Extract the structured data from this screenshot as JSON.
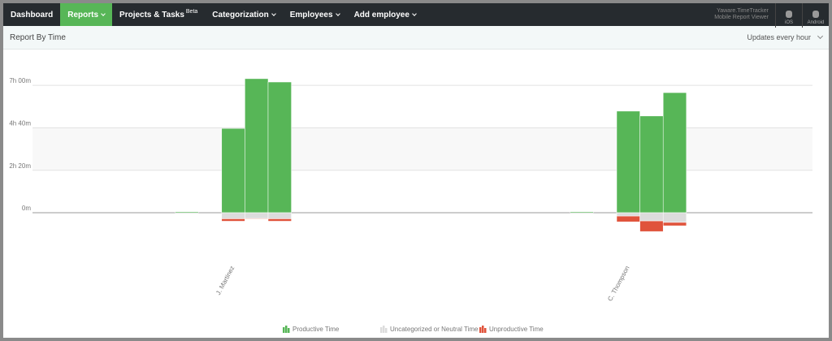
{
  "nav": {
    "items": [
      {
        "label": "Dashboard"
      },
      {
        "label": "Reports",
        "active": true
      },
      {
        "label": "Projects & Tasks",
        "badge": "Beta"
      },
      {
        "label": "Categorization"
      },
      {
        "label": "Employees"
      },
      {
        "label": "Add employee"
      }
    ],
    "promo": {
      "title": "Yaware.TimeTracker",
      "subtitle": "Mobile Report Viewer",
      "apps": [
        "iOS",
        "Android"
      ]
    }
  },
  "panel": {
    "title": "Report By Time",
    "refresh": "Updates every hour"
  },
  "chart_data": {
    "type": "bar",
    "stacked": true,
    "categories": [
      null,
      null,
      null,
      null,
      null,
      null,
      null,
      null,
      "J. Martinez",
      null,
      null,
      null,
      null,
      null,
      null,
      null,
      null,
      null,
      null,
      null,
      null,
      null,
      null,
      null,
      null,
      "C. Thompson",
      null,
      null,
      null,
      null,
      null,
      null,
      null
    ],
    "series": [
      {
        "name": "Productive Time",
        "color": "#57b657",
        "values": [
          null,
          null,
          null,
          null,
          null,
          null,
          3,
          null,
          278,
          442,
          431,
          null,
          null,
          null,
          null,
          null,
          null,
          null,
          null,
          null,
          null,
          null,
          null,
          3,
          null,
          335,
          319,
          396,
          null,
          null,
          null,
          null,
          null
        ]
      },
      {
        "name": "Uncategorized or Neutral Time",
        "color": "#dcdcdc",
        "values": [
          null,
          null,
          null,
          null,
          null,
          null,
          null,
          null,
          -20,
          -19,
          -20,
          null,
          null,
          null,
          null,
          null,
          null,
          null,
          null,
          null,
          null,
          null,
          null,
          null,
          null,
          -11,
          -27,
          -32,
          null,
          null,
          null,
          null,
          null
        ]
      },
      {
        "name": "Unproductive Time",
        "color": "#e0533b",
        "values": [
          null,
          null,
          null,
          null,
          null,
          null,
          null,
          null,
          -8,
          -2,
          -8,
          null,
          null,
          null,
          null,
          null,
          null,
          null,
          null,
          null,
          null,
          null,
          null,
          null,
          null,
          -19,
          -35,
          -11,
          null,
          null,
          null,
          null,
          null
        ]
      }
    ],
    "ylim": [
      -140,
      540
    ],
    "yticks": [
      {
        "value": 0,
        "label": "0m"
      },
      {
        "value": 140,
        "label": "2h 20m"
      },
      {
        "value": 280,
        "label": "4h 40m"
      },
      {
        "value": 420,
        "label": "7h 00m"
      }
    ],
    "grid": true
  }
}
